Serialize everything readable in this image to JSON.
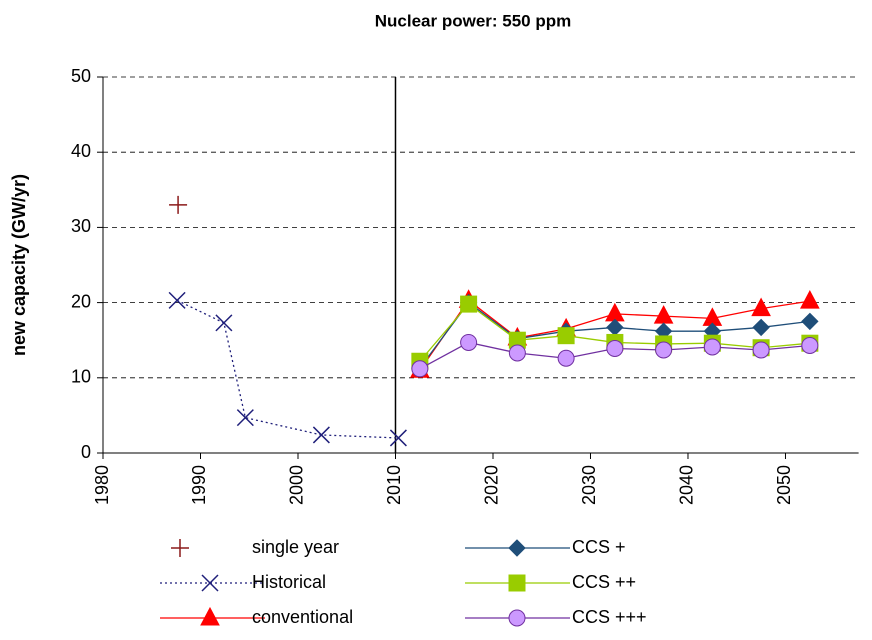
{
  "chart_data": {
    "type": "line",
    "title": "Nuclear power: 550 ppm",
    "y_label": "new capacity (GW/yr)",
    "xlim": [
      1980,
      2057.5
    ],
    "xticks": [
      1980,
      1990,
      2000,
      2010,
      2020,
      2030,
      2040,
      2050
    ],
    "ylim": [
      0,
      50
    ],
    "yticks": [
      0,
      10,
      20,
      30,
      40,
      50
    ],
    "grid": true,
    "vline": 2010,
    "series": [
      {
        "name": "single year",
        "color": "#8b1a1a",
        "marker": "plus",
        "line": "none",
        "x": [
          1987.7
        ],
        "values": [
          33
        ]
      },
      {
        "name": "Historical",
        "color": "#1f1f7a",
        "marker": "x",
        "line": "dotted",
        "x": [
          1987.6,
          1992.4,
          1994.6,
          2002.4,
          2010.3
        ],
        "values": [
          20.3,
          17.3,
          4.7,
          2.4,
          2
        ]
      },
      {
        "name": "conventional",
        "color": "#ff0000",
        "marker": "triangle",
        "line": "solid",
        "x": [
          2012.5,
          2017.5,
          2022.5,
          2027.5,
          2032.5,
          2037.5,
          2042.5,
          2047.5,
          2052.5
        ],
        "values": [
          11,
          20.3,
          15.3,
          16.5,
          18.5,
          18.2,
          17.9,
          19.2,
          20.2
        ]
      },
      {
        "name": "CCS +",
        "color": "#1f4e79",
        "marker": "diamond",
        "line": "solid",
        "x": [
          2012.5,
          2017.5,
          2022.5,
          2027.5,
          2032.5,
          2037.5,
          2042.5,
          2047.5,
          2052.5
        ],
        "values": [
          11.3,
          20,
          15.2,
          16.2,
          16.7,
          16.2,
          16.2,
          16.7,
          17.5
        ]
      },
      {
        "name": "CCS ++",
        "color": "#99cc00",
        "marker": "square",
        "line": "solid",
        "x": [
          2012.5,
          2017.5,
          2022.5,
          2027.5,
          2032.5,
          2037.5,
          2042.5,
          2047.5,
          2052.5
        ],
        "values": [
          12.2,
          19.8,
          15,
          15.6,
          14.7,
          14.5,
          14.6,
          14,
          14.6
        ]
      },
      {
        "name": "CCS +++",
        "color": "#7030a0",
        "fill": "#cc99ff",
        "marker": "circle",
        "line": "solid",
        "x": [
          2012.5,
          2017.5,
          2022.5,
          2027.5,
          2032.5,
          2037.5,
          2042.5,
          2047.5,
          2052.5
        ],
        "values": [
          11.2,
          14.7,
          13.3,
          12.6,
          13.9,
          13.7,
          14.1,
          13.7,
          14.3
        ]
      }
    ]
  }
}
